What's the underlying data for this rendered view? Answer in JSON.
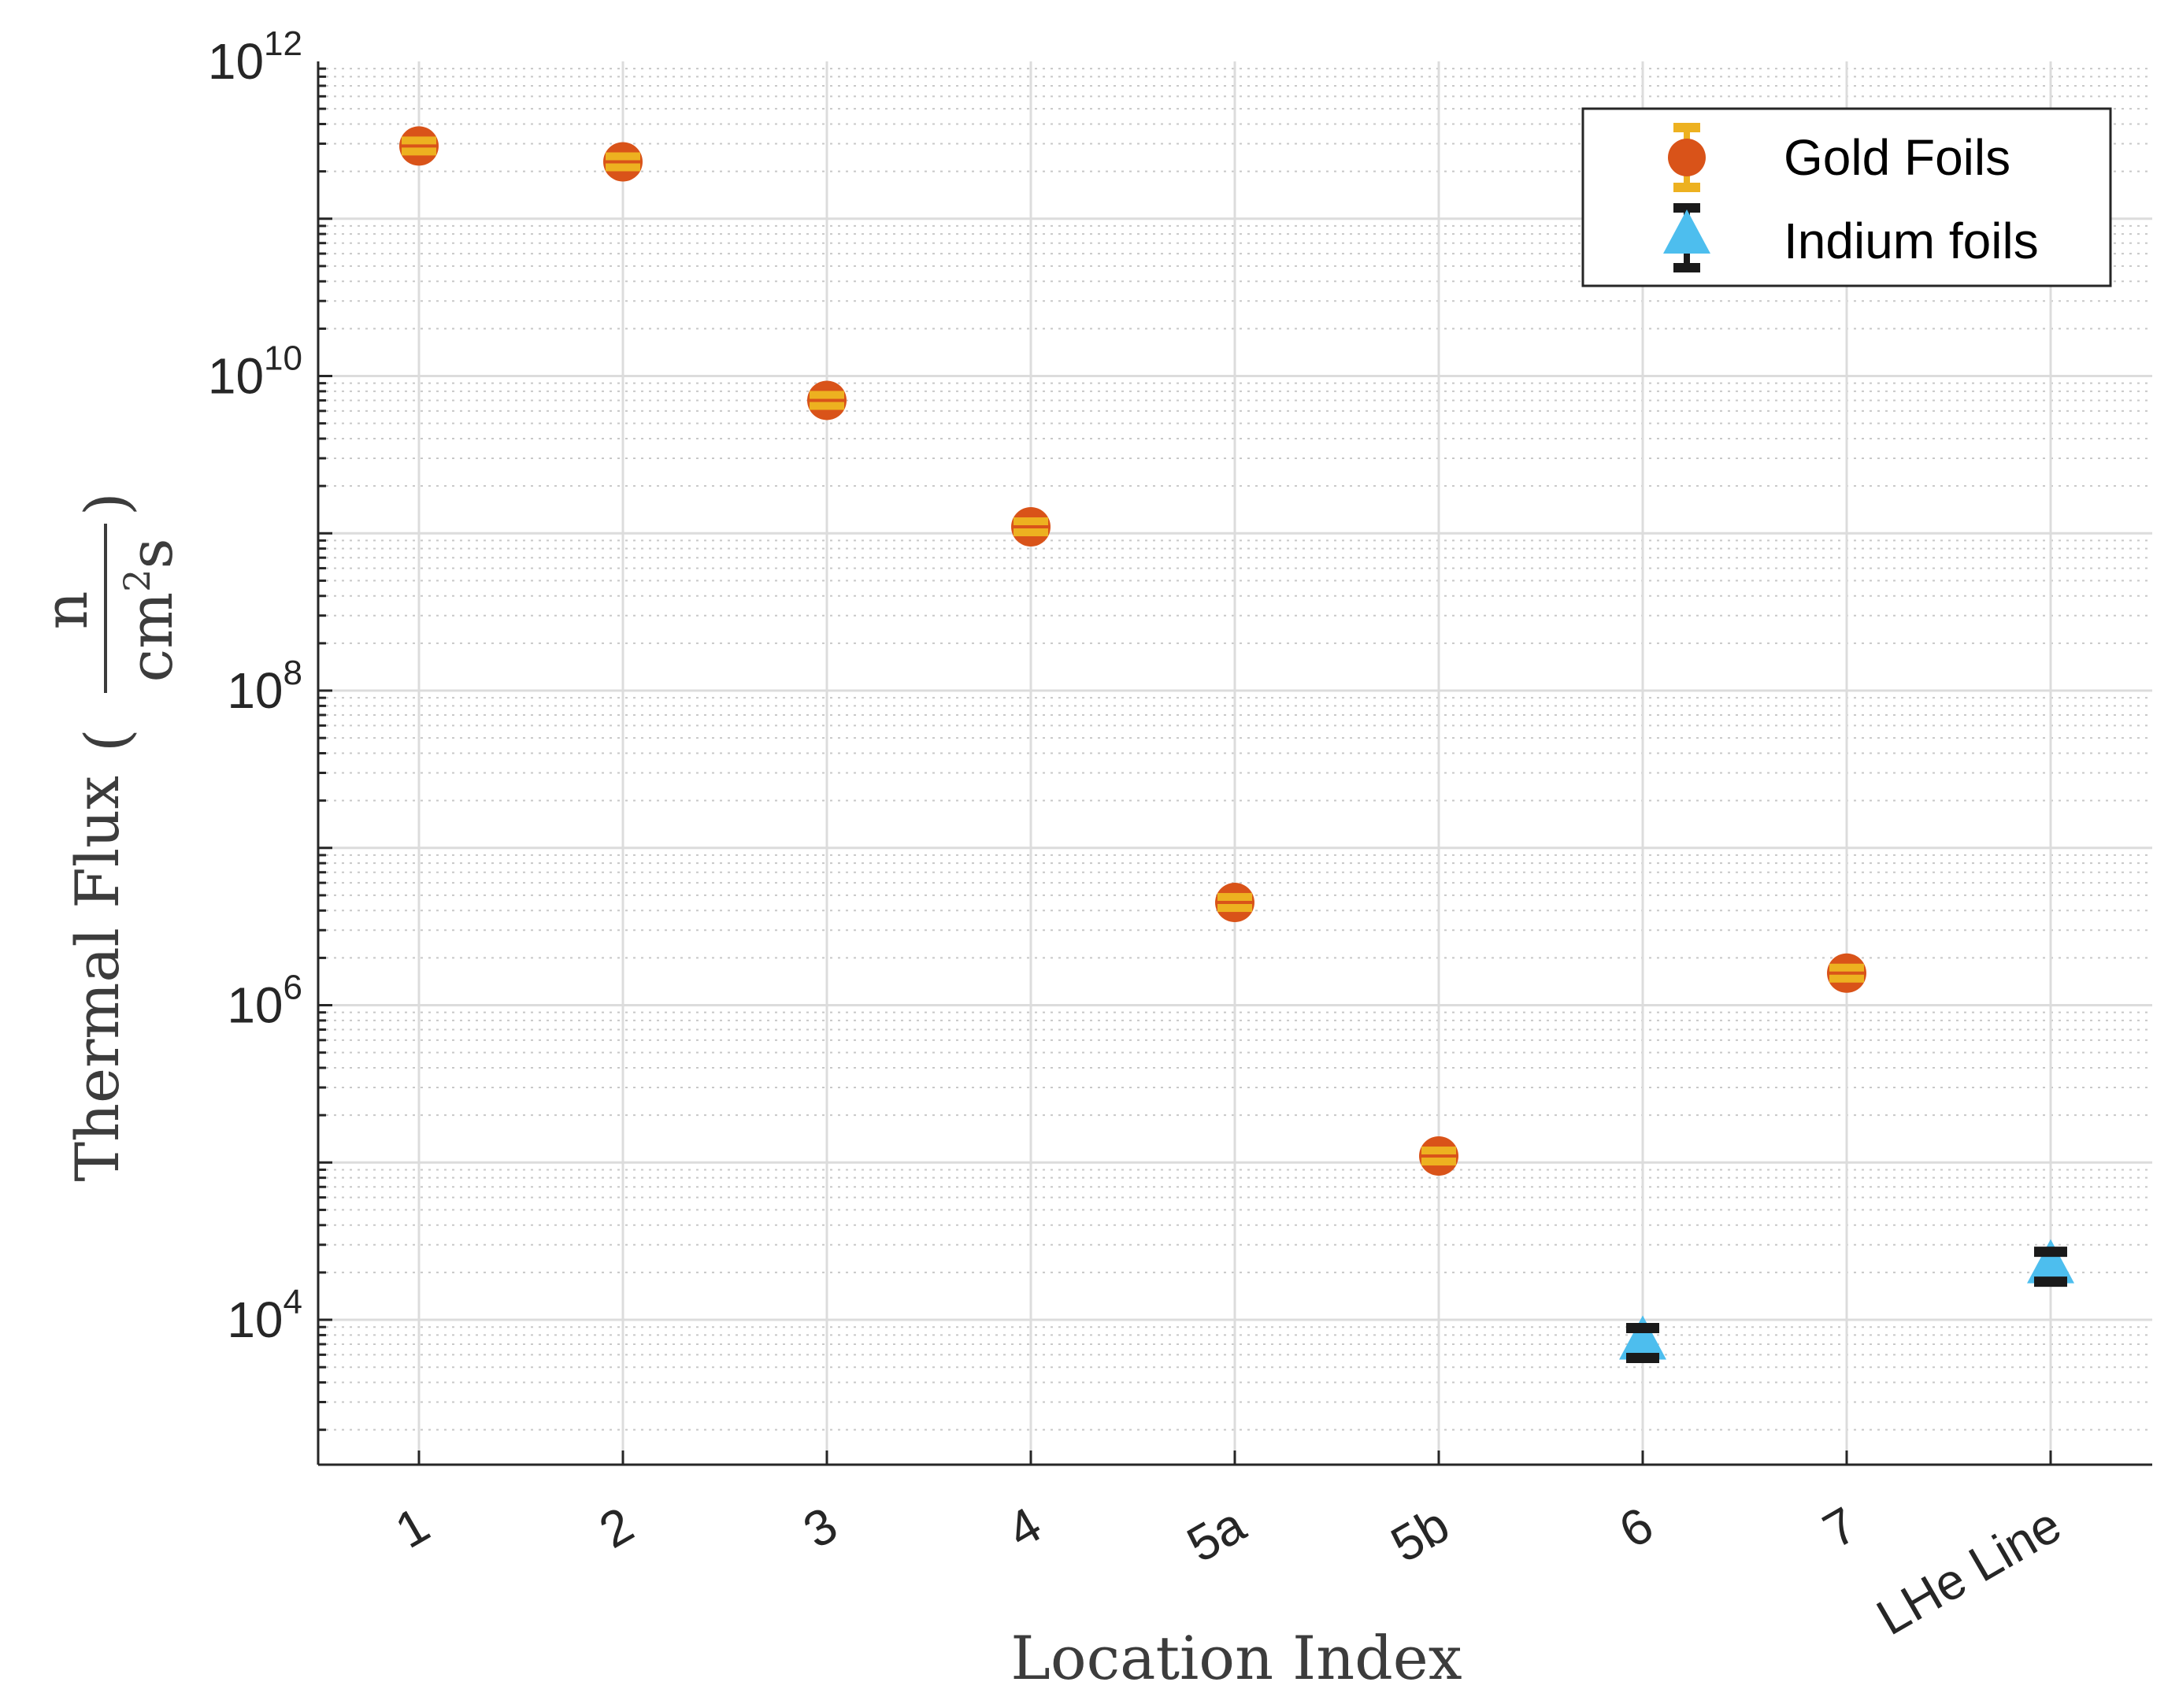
{
  "chart_data": {
    "type": "scatter",
    "xlabel": "Location Index",
    "ylabel": "Thermal Flux",
    "ylabel_fraction": {
      "numerator": "n",
      "denominator_base": "cm",
      "denominator_exp": "2",
      "denominator_suffix": "s"
    },
    "yscale": "log",
    "ylim": [
      1200.0,
      1000000000000.0
    ],
    "categories": [
      "1",
      "2",
      "3",
      "4",
      "5a",
      "5b",
      "6",
      "7",
      "LHe Line"
    ],
    "y_ticks": [
      {
        "base": "10",
        "exp": "4",
        "value": 10000.0
      },
      {
        "base": "10",
        "exp": "6",
        "value": 1000000.0
      },
      {
        "base": "10",
        "exp": "8",
        "value": 100000000.0
      },
      {
        "base": "10",
        "exp": "10",
        "value": 10000000000.0
      },
      {
        "base": "10",
        "exp": "12",
        "value": 1000000000000.0
      }
    ],
    "grid": true,
    "minor_grid": true,
    "legend_position": "top-right",
    "series": [
      {
        "name": "Gold Foils",
        "marker": "circle",
        "color": "#D95319",
        "errorbar_color": "#EDB120",
        "points": [
          {
            "x": "1",
            "y": 290000000000.0
          },
          {
            "x": "2",
            "y": 230000000000.0
          },
          {
            "x": "3",
            "y": 7000000000.0
          },
          {
            "x": "4",
            "y": 1100000000.0
          },
          {
            "x": "5a",
            "y": 4500000.0
          },
          {
            "x": "5b",
            "y": 110000.0
          },
          {
            "x": "7",
            "y": 1600000.0
          }
        ]
      },
      {
        "name": "Indium foils",
        "marker": "triangle",
        "color": "#4DBEEE",
        "errorbar_color": "#1A1A1A",
        "points": [
          {
            "x": "6",
            "y": 7200.0
          },
          {
            "x": "LHe Line",
            "y": 22000.0
          }
        ]
      }
    ]
  }
}
